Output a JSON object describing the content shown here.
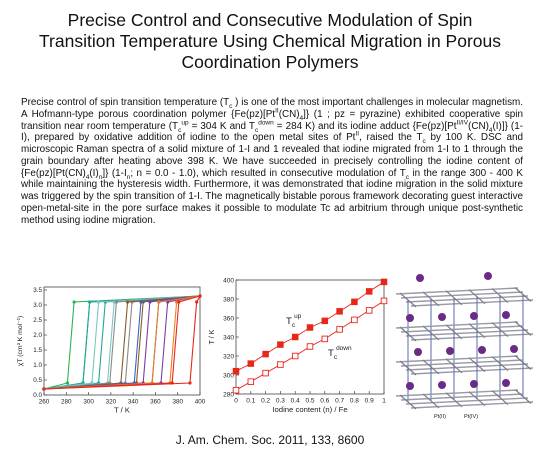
{
  "title": [
    "Precise Control and Consecutive Modulation of Spin",
    "Transition Temperature Using Chemical Migration in Porous",
    "Coordination Polymers"
  ],
  "abstract": [
    "Precise control of spin transition temperature (T",
    {
      "sub": "c"
    },
    " ) is one of the most important challenges in molecular magnetism. A Hofmann-type porous coordination polymer {Fe(pz)[Pt",
    {
      "sup": "II"
    },
    "(CN)",
    {
      "sub": "4"
    },
    "]} (1 ; pz = pyrazine) exhibited cooperative spin transition near room temperature (T",
    {
      "sub": "c"
    },
    {
      "sup": "up"
    },
    " = 304 K and T",
    {
      "sub": "c"
    },
    {
      "sup": "down"
    },
    " = 284 K) and its iodine adduct {Fe(pz)[Pt",
    {
      "sup": "II/IV"
    },
    "(CN)",
    {
      "sub": "4"
    },
    "(I)]} (1-I), prepared by oxidative addition of iodine to the open metal sites of Pt",
    {
      "sup": "II"
    },
    ", raised the T",
    {
      "sub": "c"
    },
    "  by 100 K. DSC and microscopic Raman spectra of a solid mixture of 1-I and 1 revealed that iodine migrated from 1-I to 1 through the grain boundary after heating above 398 K. We have succeeded in precisely controlling the iodine content of {Fe(pz)[Pt(CN)",
    {
      "sub": "4"
    },
    "(I)",
    {
      "sub": "n"
    },
    "]} (1-I",
    {
      "sub": "n"
    },
    "; n = 0.0 - 1.0), which resulted in consecutive modulation of T",
    {
      "sub": "c"
    },
    "  in the range 300 - 400 K while maintaining the hysteresis width. Furthermore, it was demonstrated that iodine migration in the solid mixture was triggered by the spin transition of 1-I. The magnetically bistable porous framework decorating guest interactive open-metal-site in the pore surface makes it possible to modulate Tc ad arbitrium through unique post-synthetic method using iodine migration."
  ],
  "figures": [
    {
      "type": "line",
      "x_label": "T / K",
      "y_label": "χT (cm³ K mol⁻¹)",
      "xlim": [
        260,
        400
      ],
      "xticks": [
        260,
        280,
        300,
        320,
        340,
        360,
        380,
        400
      ],
      "ylim": [
        0,
        3.6
      ],
      "yticks": [
        {
          "value": 0,
          "label": "0.0"
        },
        0.5,
        {
          "value": 1,
          "label": "1.0"
        },
        1.5,
        {
          "value": 2,
          "label": "2.0"
        },
        2.5,
        {
          "value": 3,
          "label": "3.0"
        },
        3.5
      ],
      "grid": false,
      "series": [
        {
          "color": "#2db34a",
          "x": [
            260,
            295,
            301,
            400,
            287,
            281,
            260
          ],
          "values": [
            0.2,
            0.4,
            3.1,
            3.3,
            3.1,
            0.4,
            0.2
          ]
        },
        {
          "color": "#1fa89b",
          "x": [
            260,
            309,
            315,
            400,
            301,
            295,
            260
          ],
          "values": [
            0.2,
            0.4,
            3.1,
            3.3,
            3.1,
            0.4,
            0.2
          ]
        },
        {
          "color": "#78c8c4",
          "x": [
            260,
            317,
            323,
            400,
            309,
            303,
            260
          ],
          "values": [
            0.2,
            0.4,
            3.1,
            3.3,
            3.1,
            0.4,
            0.2
          ]
        },
        {
          "color": "#8a8a8a",
          "x": [
            260,
            333,
            339,
            400,
            325,
            319,
            260
          ],
          "values": [
            0.2,
            0.4,
            3.1,
            3.3,
            3.1,
            0.4,
            0.2
          ]
        },
        {
          "color": "#8b5a2b",
          "x": [
            260,
            343,
            349,
            400,
            335,
            329,
            260
          ],
          "values": [
            0.2,
            0.4,
            3.1,
            3.3,
            3.1,
            0.4,
            0.2
          ]
        },
        {
          "color": "#3366cc",
          "x": [
            260,
            357,
            363,
            400,
            347,
            341,
            260
          ],
          "values": [
            0.2,
            0.4,
            3.1,
            3.3,
            3.1,
            0.4,
            0.2
          ]
        },
        {
          "color": "#7a3fa0",
          "x": [
            260,
            365,
            371,
            400,
            355,
            349,
            260
          ],
          "values": [
            0.2,
            0.4,
            3.1,
            3.3,
            3.1,
            0.4,
            0.2
          ]
        },
        {
          "color": "#f07f1a",
          "x": [
            260,
            373,
            379,
            400,
            363,
            357,
            260
          ],
          "values": [
            0.2,
            0.4,
            3.1,
            3.3,
            3.1,
            0.4,
            0.2
          ]
        },
        {
          "color": "#e8261a",
          "x": [
            260,
            391,
            397,
            400,
            381,
            375,
            260
          ],
          "values": [
            0.2,
            0.4,
            3.1,
            3.3,
            3.1,
            0.4,
            0.2
          ]
        }
      ]
    },
    {
      "type": "scatter",
      "x_label": "Iodine content (n) / Fe",
      "y_label": "T / K",
      "xlim": [
        0,
        1
      ],
      "xticks": [
        0,
        0.1,
        0.2,
        0.3,
        0.4,
        0.5,
        0.6,
        0.7,
        0.8,
        0.9,
        1
      ],
      "ylim": [
        280,
        400
      ],
      "yticks": [
        280,
        300,
        320,
        340,
        360,
        380,
        400
      ],
      "grid": false,
      "x": [
        0,
        0.1,
        0.2,
        0.3,
        0.4,
        0.5,
        0.6,
        0.7,
        0.8,
        0.9,
        1
      ],
      "series": [
        {
          "color": "#e8261a",
          "filled": true,
          "values": [
            304,
            312,
            322,
            332,
            340,
            350,
            357,
            367,
            377,
            388,
            398
          ]
        },
        {
          "color": "#e8261a",
          "filled": false,
          "values": [
            284,
            293,
            302,
            311,
            320,
            330,
            338,
            348,
            358,
            368,
            378
          ]
        }
      ],
      "annotations": [
        {
          "text": "T",
          "sub": "c",
          "sup": "up"
        },
        {
          "text": "T",
          "sub": "c",
          "sup": "down"
        }
      ]
    },
    {
      "labels": [
        "Pt(II)",
        "Pt(IV)"
      ]
    }
  ],
  "citation": "J. Am. Chem. Soc. 2011, 133, 8600"
}
